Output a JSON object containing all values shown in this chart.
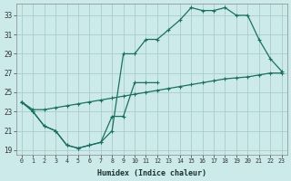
{
  "xlabel": "Humidex (Indice chaleur)",
  "bg_color": "#cceaea",
  "grid_color": "#aacccc",
  "line_color": "#1a7060",
  "xlim": [
    -0.5,
    23.5
  ],
  "ylim": [
    18.5,
    34.2
  ],
  "yticks": [
    19,
    21,
    23,
    25,
    27,
    29,
    31,
    33
  ],
  "xticks": [
    0,
    1,
    2,
    3,
    4,
    5,
    6,
    7,
    8,
    9,
    10,
    11,
    12,
    13,
    14,
    15,
    16,
    17,
    18,
    19,
    20,
    21,
    22,
    23
  ],
  "line1_x": [
    0,
    1,
    2,
    3,
    4,
    5,
    6,
    7,
    8,
    9,
    10,
    11,
    12
  ],
  "line1_y": [
    24.0,
    23.0,
    21.5,
    21.0,
    19.5,
    19.2,
    19.5,
    19.8,
    22.5,
    22.5,
    26.0,
    26.0,
    26.0
  ],
  "line2_x": [
    0,
    1,
    2,
    3,
    4,
    5,
    6,
    7,
    8,
    9,
    10,
    11,
    12,
    13,
    14,
    15,
    16,
    17,
    18,
    19,
    20,
    21,
    22,
    23
  ],
  "line2_y": [
    24.0,
    23.0,
    21.5,
    21.0,
    19.5,
    19.2,
    19.5,
    19.8,
    21.0,
    29.0,
    29.0,
    30.5,
    30.5,
    31.5,
    32.5,
    33.8,
    33.5,
    33.5,
    33.8,
    33.0,
    33.0,
    30.5,
    28.5,
    27.2
  ],
  "line3_x": [
    0,
    1,
    2,
    3,
    4,
    5,
    6,
    7,
    8,
    9,
    10,
    11,
    12,
    13,
    14,
    15,
    16,
    17,
    18,
    19,
    20,
    21,
    22,
    23
  ],
  "line3_y": [
    24.0,
    23.2,
    23.2,
    23.4,
    23.6,
    23.8,
    24.0,
    24.2,
    24.4,
    24.6,
    24.8,
    25.0,
    25.2,
    25.4,
    25.6,
    25.8,
    26.0,
    26.2,
    26.4,
    26.5,
    26.6,
    26.8,
    27.0,
    27.0
  ]
}
